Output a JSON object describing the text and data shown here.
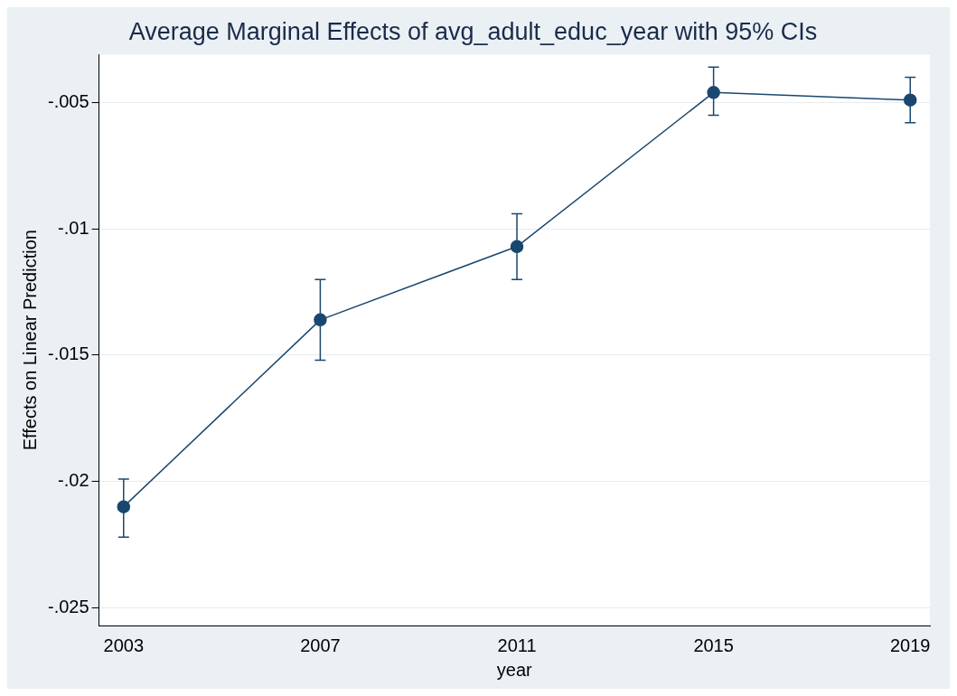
{
  "chart_data": {
    "type": "line",
    "title": "Average Marginal Effects of avg_adult_educ_year with 95% CIs",
    "xlabel": "year",
    "ylabel": "Effects on Linear Prediction",
    "x": [
      2003,
      2007,
      2011,
      2015,
      2019
    ],
    "series": [
      {
        "color": "#1a476f",
        "values": [
          -0.021,
          -0.0136,
          -0.0107,
          -0.0046,
          -0.0049
        ],
        "errors": [
          [
            -0.0222,
            -0.0199
          ],
          [
            -0.0152,
            -0.012
          ],
          [
            -0.012,
            -0.0094
          ],
          [
            -0.0055,
            -0.0036
          ],
          [
            -0.0058,
            -0.004
          ]
        ]
      }
    ],
    "xlim": [
      2002.5,
      2019.4
    ],
    "xticks": [
      2003,
      2007,
      2011,
      2015,
      2019
    ],
    "ylim": [
      -0.0257,
      -0.0031
    ],
    "yticks": [
      {
        "value": -0.025,
        "label": "-.025"
      },
      {
        "value": -0.02,
        "label": "-.02"
      },
      {
        "value": -0.015,
        "label": "-.015"
      },
      {
        "value": -0.01,
        "label": "-.01"
      },
      {
        "value": -0.005,
        "label": "-.005"
      }
    ],
    "grid": "y",
    "legend": false,
    "marker": "circle",
    "line_style": "solid"
  }
}
